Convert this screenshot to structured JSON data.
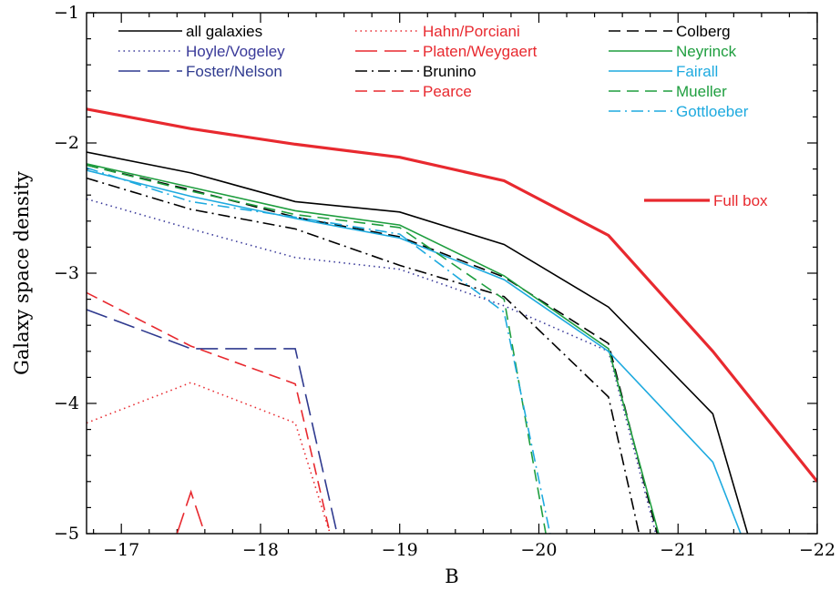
{
  "chart_data": {
    "type": "line",
    "xlabel": "B",
    "ylabel": "Galaxy  space  density",
    "xlim": [
      -16.75,
      -22
    ],
    "ylim": [
      -5,
      -1
    ],
    "x_ticks": [
      -17,
      -18,
      -19,
      -20,
      -21,
      -22
    ],
    "x_tick_labels": [
      "−17",
      "−18",
      "−19",
      "−20",
      "−21",
      "−22"
    ],
    "y_ticks": [
      -1,
      -2,
      -3,
      -4,
      -5
    ],
    "y_tick_labels": [
      "−1",
      "−2",
      "−3",
      "−4",
      "−5"
    ],
    "grid": false,
    "legend_position": "top",
    "series": [
      {
        "name": "all galaxies",
        "color": "#000000",
        "dash": "solid",
        "width": 1.6,
        "points": [
          [
            -16.75,
            -2.07
          ],
          [
            -17.5,
            -2.23
          ],
          [
            -18.25,
            -2.45
          ],
          [
            -19,
            -2.53
          ],
          [
            -19.75,
            -2.78
          ],
          [
            -20.5,
            -3.26
          ],
          [
            -21.25,
            -4.08
          ],
          [
            -21.5,
            -5
          ]
        ]
      },
      {
        "name": "Hoyle/Vogeley",
        "color": "#3a3a9a",
        "dash": "dot",
        "width": 1.6,
        "points": [
          [
            -16.75,
            -2.43
          ],
          [
            -17.5,
            -2.66
          ],
          [
            -18.25,
            -2.88
          ],
          [
            -19,
            -2.97
          ],
          [
            -19.75,
            -3.25
          ],
          [
            -20.5,
            -3.6
          ],
          [
            -20.84,
            -5
          ]
        ]
      },
      {
        "name": "Foster/Nelson",
        "color": "#2f3a8f",
        "dash": "longdash",
        "width": 1.6,
        "points": [
          [
            -16.75,
            -3.28
          ],
          [
            -17.5,
            -3.58
          ],
          [
            -18.25,
            -3.58
          ],
          [
            -18.55,
            -5
          ]
        ]
      },
      {
        "name": "Hahn/Porciani",
        "color": "#e8292f",
        "dash": "dot",
        "width": 1.6,
        "points": [
          [
            -16.75,
            -4.15
          ],
          [
            -17.5,
            -3.84
          ],
          [
            -18.25,
            -4.15
          ],
          [
            -18.5,
            -5
          ]
        ]
      },
      {
        "name": "Platen/Weygaert",
        "color": "#e8292f",
        "dash": "longdash",
        "width": 1.6,
        "points": [
          [
            -17.4,
            -5
          ],
          [
            -17.5,
            -4.68
          ],
          [
            -17.6,
            -5
          ]
        ]
      },
      {
        "name": "Brunino",
        "color": "#000000",
        "dash": "dashdot",
        "width": 1.6,
        "points": [
          [
            -16.75,
            -2.27
          ],
          [
            -17.5,
            -2.51
          ],
          [
            -18.25,
            -2.66
          ],
          [
            -19,
            -2.94
          ],
          [
            -19.75,
            -3.18
          ],
          [
            -20.5,
            -3.95
          ],
          [
            -20.72,
            -5
          ]
        ]
      },
      {
        "name": "Pearce",
        "color": "#e8292f",
        "dash": "dash",
        "width": 1.6,
        "points": [
          [
            -16.75,
            -3.15
          ],
          [
            -17.5,
            -3.56
          ],
          [
            -18.25,
            -3.85
          ],
          [
            -18.5,
            -5
          ]
        ]
      },
      {
        "name": "Colberg",
        "color": "#000000",
        "dash": "dash",
        "width": 1.6,
        "points": [
          [
            -16.75,
            -2.17
          ],
          [
            -17.5,
            -2.36
          ],
          [
            -18.25,
            -2.57
          ],
          [
            -19,
            -2.72
          ],
          [
            -19.75,
            -3.03
          ],
          [
            -20.5,
            -3.54
          ],
          [
            -20.85,
            -5
          ]
        ]
      },
      {
        "name": "Neyrinck",
        "color": "#1f9e3f",
        "dash": "solid",
        "width": 1.6,
        "points": [
          [
            -16.75,
            -2.16
          ],
          [
            -17.5,
            -2.34
          ],
          [
            -18.25,
            -2.52
          ],
          [
            -19,
            -2.63
          ],
          [
            -19.75,
            -3.02
          ],
          [
            -20.5,
            -3.58
          ],
          [
            -20.86,
            -5
          ]
        ]
      },
      {
        "name": "Fairall",
        "color": "#1eaadf",
        "dash": "solid",
        "width": 1.6,
        "points": [
          [
            -16.75,
            -2.21
          ],
          [
            -17.5,
            -2.41
          ],
          [
            -18.25,
            -2.58
          ],
          [
            -19,
            -2.73
          ],
          [
            -19.75,
            -3.05
          ],
          [
            -20.5,
            -3.6
          ],
          [
            -21.25,
            -4.45
          ],
          [
            -21.45,
            -5
          ]
        ]
      },
      {
        "name": "Mueller",
        "color": "#1f9e3f",
        "dash": "dash",
        "width": 1.6,
        "points": [
          [
            -16.75,
            -2.17
          ],
          [
            -17.5,
            -2.37
          ],
          [
            -18.25,
            -2.55
          ],
          [
            -19,
            -2.65
          ],
          [
            -19.75,
            -3.2
          ],
          [
            -20.05,
            -5
          ]
        ]
      },
      {
        "name": "Gottloeber",
        "color": "#1eaadf",
        "dash": "dashdot",
        "width": 1.6,
        "points": [
          [
            -16.75,
            -2.19
          ],
          [
            -17.5,
            -2.45
          ],
          [
            -18.25,
            -2.57
          ],
          [
            -19,
            -2.7
          ],
          [
            -19.75,
            -3.3
          ],
          [
            -20.08,
            -5
          ]
        ]
      },
      {
        "name": "Full box",
        "color": "#e8292f",
        "dash": "solid",
        "width": 3.2,
        "points": [
          [
            -16.75,
            -1.74
          ],
          [
            -17.5,
            -1.89
          ],
          [
            -18.25,
            -2.01
          ],
          [
            -19,
            -2.11
          ],
          [
            -19.75,
            -2.29
          ],
          [
            -20.5,
            -2.71
          ],
          [
            -21.25,
            -3.6
          ],
          [
            -22,
            -4.6
          ]
        ]
      }
    ]
  }
}
